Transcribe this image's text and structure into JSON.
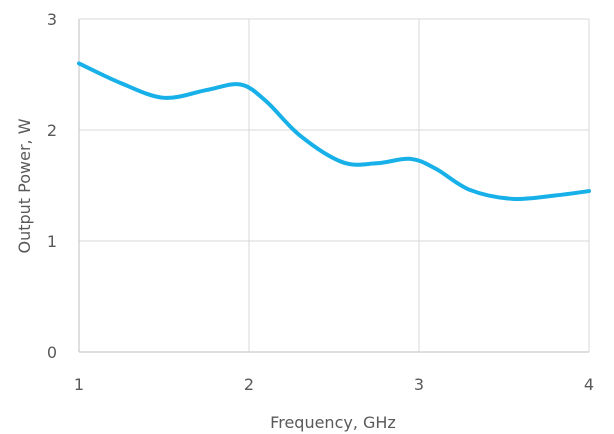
{
  "chart_data": {
    "type": "line",
    "title": "",
    "xlabel": "Frequency, GHz",
    "ylabel": "Output Power, W",
    "xlim": [
      1,
      4
    ],
    "ylim": [
      0,
      3
    ],
    "xticks": [
      1,
      2,
      3,
      4
    ],
    "yticks": [
      0,
      1,
      2,
      3
    ],
    "grid": true,
    "legend": "none",
    "series": [
      {
        "color": "#17B0E8",
        "smooth": true,
        "x": [
          1.0,
          1.25,
          1.5,
          1.75,
          1.95,
          2.1,
          2.3,
          2.55,
          2.75,
          2.95,
          3.1,
          3.3,
          3.55,
          3.8,
          4.0
        ],
        "y": [
          2.6,
          2.42,
          2.29,
          2.36,
          2.41,
          2.26,
          1.95,
          1.71,
          1.7,
          1.74,
          1.65,
          1.46,
          1.38,
          1.41,
          1.45
        ]
      }
    ]
  }
}
